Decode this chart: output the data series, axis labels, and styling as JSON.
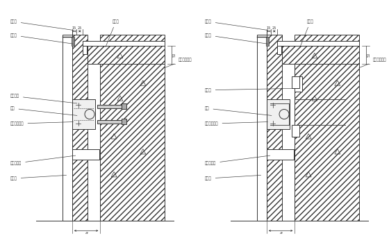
{
  "bg": "#ffffff",
  "lc": "#333333",
  "fig_w": 5.6,
  "fig_h": 3.4,
  "dpi": 100,
  "node1_labels_left": [
    [
      "密封胶",
      -2.2,
      13.5,
      2.05,
      13.0
    ],
    [
      "泡棉条",
      -2.2,
      12.6,
      2.05,
      12.1
    ],
    [
      "厚铰螺栓",
      -2.2,
      8.6,
      2.3,
      8.2
    ],
    [
      "螺栓",
      -2.2,
      7.8,
      2.3,
      7.4
    ],
    [
      "不锈钢连接件",
      -2.2,
      6.8,
      2.05,
      7.0
    ],
    [
      "镀锌板支托",
      -2.2,
      4.2,
      2.2,
      4.8
    ],
    [
      "大理石",
      -2.2,
      3.2,
      1.6,
      3.5
    ]
  ],
  "node1_labels_right": [
    [
      "镀件板",
      4.5,
      13.5,
      4.0,
      11.8
    ],
    [
      "射钉或水泥钉",
      8.8,
      11.0,
      7.8,
      10.5
    ]
  ],
  "node2_labels_left": [
    [
      "密封胶",
      -2.2,
      13.5,
      2.05,
      13.0
    ],
    [
      "泡棉条",
      -2.2,
      12.6,
      2.05,
      12.1
    ],
    [
      "预埋件",
      -2.2,
      9.0,
      3.8,
      9.2
    ],
    [
      "螺栓",
      -2.2,
      7.8,
      2.3,
      7.4
    ],
    [
      "不锈钢连接件",
      -2.2,
      6.8,
      2.05,
      7.0
    ],
    [
      "镀锌板支托",
      -2.2,
      4.2,
      2.2,
      4.8
    ],
    [
      "大理石",
      -2.2,
      3.2,
      1.6,
      3.5
    ]
  ],
  "node2_labels_right": [
    [
      "镀件板",
      4.5,
      13.5,
      4.0,
      11.8
    ],
    [
      "射钉或水泥钉",
      8.8,
      11.0,
      7.8,
      10.5
    ]
  ]
}
